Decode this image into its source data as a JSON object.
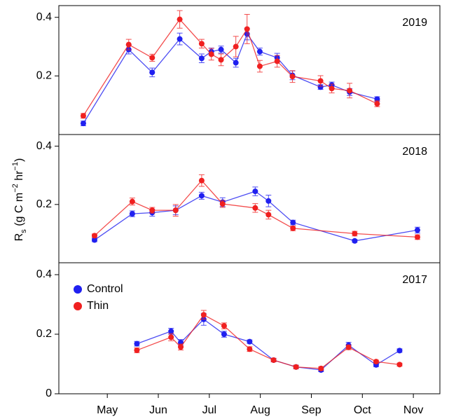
{
  "y_label": {
    "main": "R",
    "sub": "s",
    "unit_open": " (g C m",
    "sup1": "−2",
    "unit_mid": " hr",
    "sup2": "−1",
    "unit_close": ")"
  },
  "chart_data": [
    {
      "type": "line",
      "title": "2019",
      "xlim": [
        4.05,
        11.52
      ],
      "ylim": [
        0,
        0.44
      ],
      "yticks": [
        0.2,
        0.4
      ],
      "series": [
        {
          "name": "Control",
          "color": "#2020f0",
          "x": [
            4.53,
            5.42,
            5.88,
            6.42,
            6.85,
            7.04,
            7.23,
            7.52,
            7.74,
            7.99,
            8.33,
            8.63,
            9.18,
            9.4,
            9.75,
            10.29
          ],
          "values": [
            0.038,
            0.29,
            0.212,
            0.326,
            0.26,
            0.283,
            0.29,
            0.245,
            0.343,
            0.283,
            0.262,
            0.202,
            0.162,
            0.169,
            0.145,
            0.121
          ],
          "errors": [
            0.008,
            0.015,
            0.015,
            0.02,
            0.015,
            0.012,
            0.012,
            0.015,
            0.02,
            0.012,
            0.015,
            0.015,
            0.008,
            0.01,
            0.012,
            0.008
          ]
        },
        {
          "name": "Thin",
          "color": "#f02020",
          "x": [
            4.53,
            5.42,
            5.88,
            6.42,
            6.85,
            7.04,
            7.23,
            7.52,
            7.74,
            7.99,
            8.33,
            8.63,
            9.18,
            9.4,
            9.75,
            10.29
          ],
          "values": [
            0.064,
            0.307,
            0.262,
            0.393,
            0.31,
            0.274,
            0.255,
            0.3,
            0.36,
            0.233,
            0.25,
            0.198,
            0.183,
            0.157,
            0.15,
            0.105
          ],
          "errors": [
            0.008,
            0.018,
            0.012,
            0.03,
            0.015,
            0.02,
            0.02,
            0.035,
            0.05,
            0.02,
            0.02,
            0.02,
            0.018,
            0.015,
            0.025,
            0.01
          ]
        }
      ]
    },
    {
      "type": "line",
      "title": "2018",
      "xlim": [
        4.05,
        11.52
      ],
      "ylim": [
        0,
        0.44
      ],
      "yticks": [
        0.2,
        0.4
      ],
      "series": [
        {
          "name": "Control",
          "color": "#2020f0",
          "x": [
            4.75,
            5.49,
            5.88,
            6.34,
            6.85,
            7.26,
            7.9,
            8.16,
            8.64,
            9.85,
            11.08
          ],
          "values": [
            0.078,
            0.168,
            0.172,
            0.18,
            0.23,
            0.208,
            0.245,
            0.212,
            0.138,
            0.075,
            0.112
          ],
          "errors": [
            0.006,
            0.01,
            0.012,
            0.015,
            0.012,
            0.015,
            0.015,
            0.02,
            0.008,
            0.005,
            0.01
          ]
        },
        {
          "name": "Thin",
          "color": "#f02020",
          "x": [
            4.75,
            5.49,
            5.88,
            6.34,
            6.85,
            7.26,
            7.9,
            8.16,
            8.64,
            9.85,
            11.08
          ],
          "values": [
            0.093,
            0.21,
            0.18,
            0.18,
            0.282,
            0.202,
            0.188,
            0.165,
            0.118,
            0.1,
            0.088
          ],
          "errors": [
            0.006,
            0.012,
            0.01,
            0.02,
            0.02,
            0.012,
            0.015,
            0.015,
            0.008,
            0.008,
            0.008
          ]
        }
      ]
    },
    {
      "type": "line",
      "title": "2017",
      "xlim": [
        4.05,
        11.52
      ],
      "ylim": [
        0,
        0.44
      ],
      "yticks": [
        0,
        0.2,
        0.4
      ],
      "xticks": [
        {
          "value": 5,
          "label": "May"
        },
        {
          "value": 6,
          "label": "Jun"
        },
        {
          "value": 7,
          "label": "Jul"
        },
        {
          "value": 8,
          "label": "Aug"
        },
        {
          "value": 9,
          "label": "Sep"
        },
        {
          "value": 10,
          "label": "Oct"
        },
        {
          "value": 11,
          "label": "Nov"
        }
      ],
      "legend": "upper left",
      "series": [
        {
          "name": "Control",
          "color": "#2020f0",
          "x": [
            5.58,
            6.25,
            6.44,
            6.89,
            7.29,
            7.79,
            8.26,
            8.7,
            9.19,
            9.73,
            10.27,
            10.73
          ],
          "values": [
            0.168,
            0.21,
            0.172,
            0.25,
            0.2,
            0.175,
            0.113,
            0.09,
            0.08,
            0.163,
            0.097,
            0.145
          ],
          "errors": [
            0.008,
            0.01,
            0.01,
            0.02,
            0.01,
            0.006,
            0.006,
            0.006,
            0.006,
            0.01,
            0.006,
            0.006
          ]
        },
        {
          "name": "Thin",
          "color": "#f02020",
          "x": [
            5.58,
            6.25,
            6.44,
            6.89,
            7.29,
            7.79,
            8.26,
            8.7,
            9.19,
            9.73,
            10.27,
            10.73
          ],
          "values": [
            0.146,
            0.19,
            0.157,
            0.265,
            0.228,
            0.15,
            0.113,
            0.09,
            0.085,
            0.156,
            0.108,
            0.098
          ],
          "errors": [
            0.008,
            0.012,
            0.01,
            0.015,
            0.01,
            0.008,
            0.006,
            0.006,
            0.006,
            0.008,
            0.005,
            0.005
          ]
        }
      ]
    }
  ]
}
